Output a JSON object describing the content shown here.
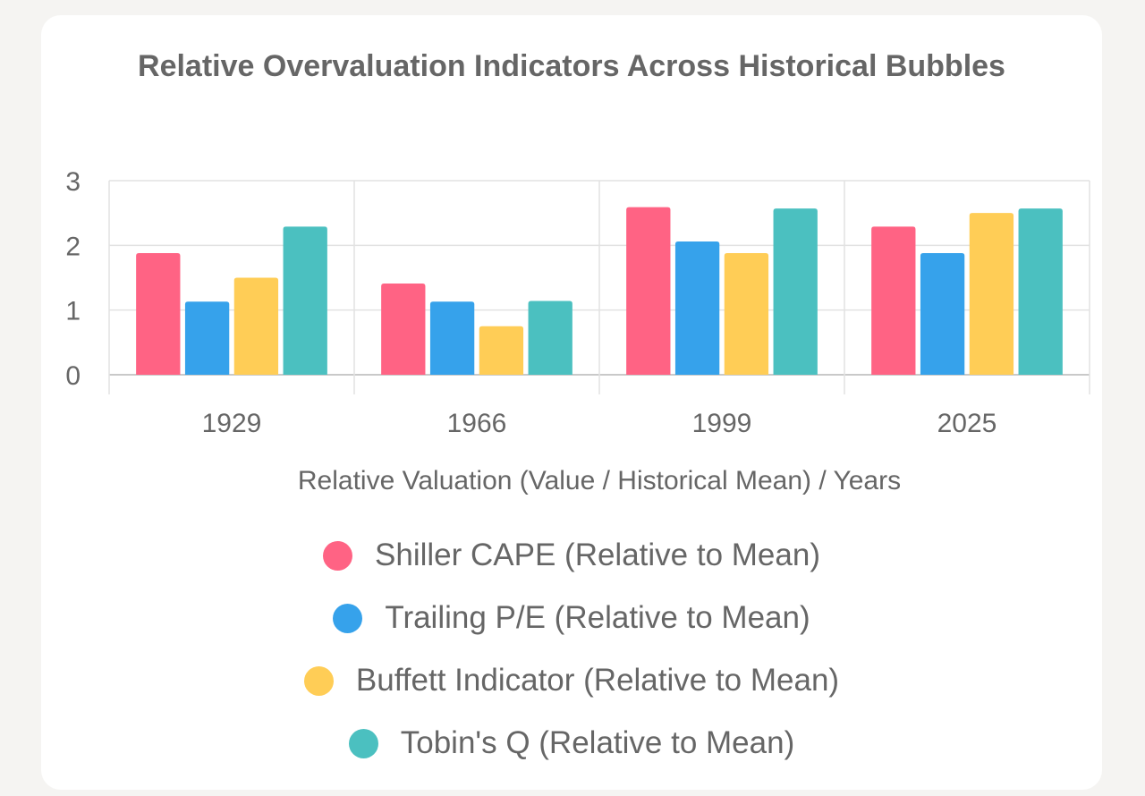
{
  "chart_data": {
    "type": "bar",
    "title": "Relative Overvaluation Indicators Across Historical Bubbles",
    "xlabel": "Relative Valuation (Value / Historical Mean) / Years",
    "ylabel": "",
    "categories": [
      "1929",
      "1966",
      "1999",
      "2025"
    ],
    "ylim": [
      0,
      3
    ],
    "yticks": [
      "0",
      "1",
      "2",
      "3"
    ],
    "grid": true,
    "legend_position": "bottom",
    "series": [
      {
        "name": "Shiller CAPE (Relative to Mean)",
        "color": "#ff6384",
        "values": [
          1.88,
          1.41,
          2.59,
          2.29
        ]
      },
      {
        "name": "Trailing P/E (Relative to Mean)",
        "color": "#36a2eb",
        "values": [
          1.13,
          1.13,
          2.06,
          1.88
        ]
      },
      {
        "name": "Buffett Indicator (Relative to Mean)",
        "color": "#ffcd56",
        "values": [
          1.5,
          0.75,
          1.88,
          2.5
        ]
      },
      {
        "name": "Tobin's Q (Relative to Mean)",
        "color": "#4bc0c0",
        "values": [
          2.29,
          1.14,
          2.57,
          2.57
        ]
      }
    ]
  }
}
